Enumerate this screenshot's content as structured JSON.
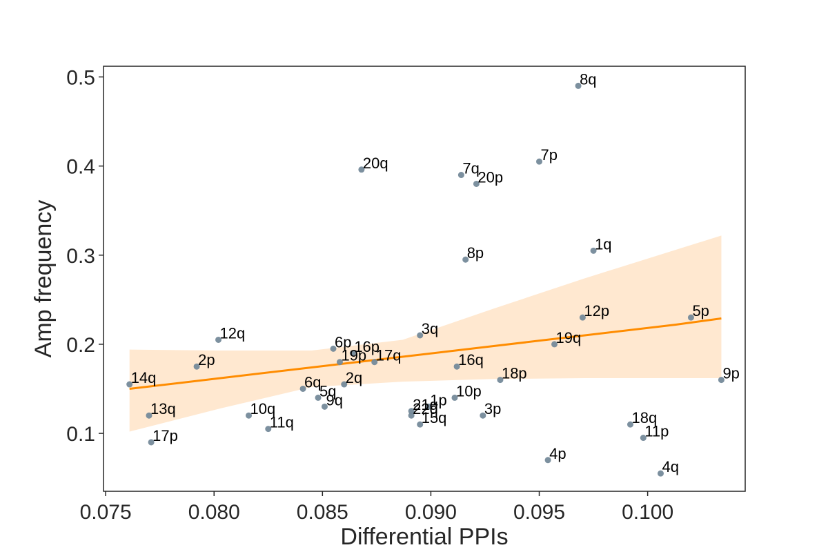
{
  "chart_data": {
    "type": "scatter",
    "title": "",
    "xlabel": "Differential PPIs",
    "ylabel": "Amp frequency",
    "xlim": [
      0.0749,
      0.1045
    ],
    "ylim": [
      0.035,
      0.512
    ],
    "xticks": [
      0.075,
      0.08,
      0.085,
      0.09,
      0.095,
      0.1
    ],
    "xtick_labels": [
      "0.075",
      "0.080",
      "0.085",
      "0.090",
      "0.095",
      "0.100"
    ],
    "yticks": [
      0.1,
      0.2,
      0.3,
      0.4,
      0.5
    ],
    "ytick_labels": [
      "0.1",
      "0.2",
      "0.3",
      "0.4",
      "0.5"
    ],
    "grid": false,
    "point_color": "#758A9A",
    "regression": {
      "color": "#FF8C00",
      "band_color": "#FFE8D0",
      "x": [
        0.0761,
        0.0803,
        0.0845,
        0.0887,
        0.0929,
        0.0971,
        0.1013,
        0.1034
      ],
      "y": [
        0.15,
        0.162,
        0.174,
        0.186,
        0.198,
        0.21,
        0.222,
        0.229
      ],
      "ci_lower": [
        0.102,
        0.128,
        0.152,
        0.158,
        0.161,
        0.162,
        0.162,
        0.162
      ],
      "ci_upper": [
        0.194,
        0.193,
        0.193,
        0.205,
        0.24,
        0.274,
        0.306,
        0.322
      ]
    },
    "points": [
      {
        "label": "8q",
        "x": 0.0968,
        "y": 0.49
      },
      {
        "label": "20q",
        "x": 0.0868,
        "y": 0.396
      },
      {
        "label": "7q",
        "x": 0.0914,
        "y": 0.39
      },
      {
        "label": "20p",
        "x": 0.0921,
        "y": 0.38
      },
      {
        "label": "7p",
        "x": 0.095,
        "y": 0.405
      },
      {
        "label": "1q",
        "x": 0.0975,
        "y": 0.305
      },
      {
        "label": "8p",
        "x": 0.0916,
        "y": 0.295
      },
      {
        "label": "12p",
        "x": 0.097,
        "y": 0.23
      },
      {
        "label": "5p",
        "x": 0.102,
        "y": 0.23
      },
      {
        "label": "3q",
        "x": 0.0895,
        "y": 0.21
      },
      {
        "label": "12q",
        "x": 0.0802,
        "y": 0.205
      },
      {
        "label": "6p",
        "x": 0.0855,
        "y": 0.195
      },
      {
        "label": "19q",
        "x": 0.0957,
        "y": 0.2
      },
      {
        "label": "16p",
        "x": 0.0864,
        "y": 0.19
      },
      {
        "label": "19p",
        "x": 0.0858,
        "y": 0.18
      },
      {
        "label": "17q",
        "x": 0.0874,
        "y": 0.18
      },
      {
        "label": "2p",
        "x": 0.0792,
        "y": 0.175
      },
      {
        "label": "16q",
        "x": 0.0912,
        "y": 0.175
      },
      {
        "label": "18p",
        "x": 0.0932,
        "y": 0.16
      },
      {
        "label": "9p",
        "x": 0.1034,
        "y": 0.16
      },
      {
        "label": "14q",
        "x": 0.0761,
        "y": 0.155
      },
      {
        "label": "2q",
        "x": 0.086,
        "y": 0.155
      },
      {
        "label": "6q",
        "x": 0.0841,
        "y": 0.15
      },
      {
        "label": "5q",
        "x": 0.0848,
        "y": 0.14
      },
      {
        "label": "10p",
        "x": 0.0911,
        "y": 0.14
      },
      {
        "label": "9q",
        "x": 0.0851,
        "y": 0.13
      },
      {
        "label": "1p",
        "x": 0.0899,
        "y": 0.13
      },
      {
        "label": "21q",
        "x": 0.0891,
        "y": 0.125
      },
      {
        "label": "22q",
        "x": 0.0891,
        "y": 0.12
      },
      {
        "label": "13q",
        "x": 0.077,
        "y": 0.12
      },
      {
        "label": "10q",
        "x": 0.0816,
        "y": 0.12
      },
      {
        "label": "3p",
        "x": 0.0924,
        "y": 0.12
      },
      {
        "label": "15q",
        "x": 0.0895,
        "y": 0.11
      },
      {
        "label": "18q",
        "x": 0.0992,
        "y": 0.11
      },
      {
        "label": "11q",
        "x": 0.0825,
        "y": 0.105
      },
      {
        "label": "11p",
        "x": 0.0998,
        "y": 0.095
      },
      {
        "label": "17p",
        "x": 0.0771,
        "y": 0.09
      },
      {
        "label": "4p",
        "x": 0.0954,
        "y": 0.07
      },
      {
        "label": "4q",
        "x": 0.1006,
        "y": 0.055
      }
    ]
  }
}
